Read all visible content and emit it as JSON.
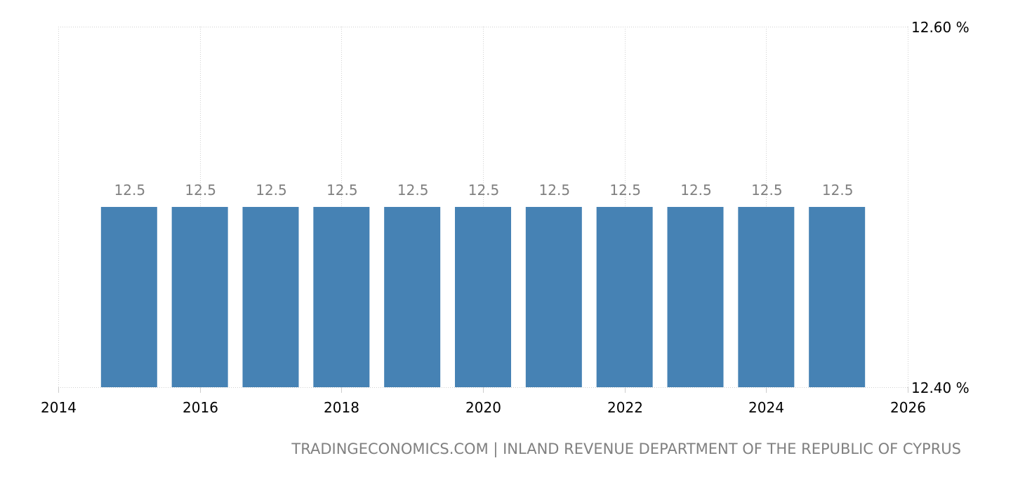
{
  "chart_data": {
    "type": "bar",
    "x": [
      2015,
      2016,
      2017,
      2018,
      2019,
      2020,
      2021,
      2022,
      2023,
      2024,
      2025
    ],
    "values": [
      12.5,
      12.5,
      12.5,
      12.5,
      12.5,
      12.5,
      12.5,
      12.5,
      12.5,
      12.5,
      12.5
    ],
    "data_labels": [
      "12.5",
      "12.5",
      "12.5",
      "12.5",
      "12.5",
      "12.5",
      "12.5",
      "12.5",
      "12.5",
      "12.5",
      "12.5"
    ],
    "xlim": [
      2014,
      2026
    ],
    "x_ticks": [
      "2014",
      "2016",
      "2018",
      "2020",
      "2022",
      "2024",
      "2026"
    ],
    "ylim": [
      12.4,
      12.6
    ],
    "y_ticks": [
      "12.40 %",
      "12.60 %"
    ],
    "y_axis_side": "right",
    "grid": true,
    "bar_color": "#4682b4",
    "title": "",
    "xlabel": "",
    "ylabel": ""
  },
  "footer": {
    "source": "TRADINGECONOMICS.COM | INLAND REVENUE DEPARTMENT OF THE REPUBLIC OF CYPRUS"
  }
}
